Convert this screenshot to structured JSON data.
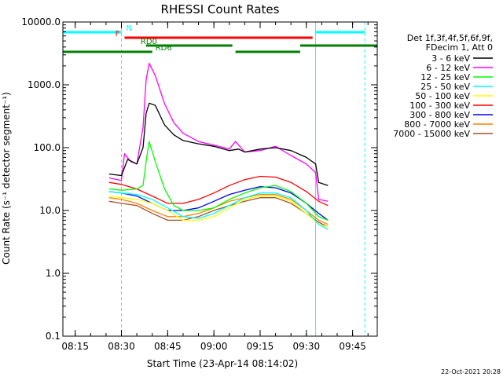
{
  "chart_data": {
    "type": "line",
    "title": "RHESSI Count Rates",
    "xlabel": "Start Time (23-Apr-14 08:14:02)",
    "ylabel": "Count Rate (s⁻¹ detector segment⁻¹)",
    "y_scale": "log",
    "ylim": [
      0.1,
      10000
    ],
    "xlim": [
      "08:11",
      "09:53"
    ],
    "x_ticks": [
      "08:15",
      "08:30",
      "08:45",
      "09:00",
      "09:15",
      "09:30",
      "09:45"
    ],
    "y_ticks": [
      "0.1",
      "1.0",
      "10.0",
      "100.0",
      "1000.0",
      "10000.0"
    ],
    "grid": false,
    "legend_position": "right",
    "legend_header": [
      "Det 1f,3f,4f,5f,6f,9f,",
      "FDecim 1, Att 0"
    ],
    "footer_date": "22-Oct-2021 20:28",
    "series": [
      {
        "name": "3 - 6 keV",
        "color": "#000000",
        "points": [
          [
            "08:26",
            38
          ],
          [
            "08:30",
            36
          ],
          [
            "08:32",
            65
          ],
          [
            "08:35",
            55
          ],
          [
            "08:37",
            100
          ],
          [
            "08:38",
            350
          ],
          [
            "08:39",
            510
          ],
          [
            "08:41",
            470
          ],
          [
            "08:44",
            230
          ],
          [
            "08:47",
            160
          ],
          [
            "08:50",
            130
          ],
          [
            "08:55",
            115
          ],
          [
            "09:00",
            105
          ],
          [
            "09:05",
            90
          ],
          [
            "09:08",
            95
          ],
          [
            "09:10",
            85
          ],
          [
            "09:15",
            95
          ],
          [
            "09:20",
            100
          ],
          [
            "09:25",
            90
          ],
          [
            "09:30",
            70
          ],
          [
            "09:33",
            55
          ],
          [
            "09:34",
            28
          ],
          [
            "09:37",
            25
          ]
        ]
      },
      {
        "name": "6 - 12 keV",
        "color": "#ff00ff",
        "points": [
          [
            "08:26",
            33
          ],
          [
            "08:30",
            30
          ],
          [
            "08:31",
            80
          ],
          [
            "08:33",
            60
          ],
          [
            "08:35",
            55
          ],
          [
            "08:37",
            210
          ],
          [
            "08:38",
            1200
          ],
          [
            "08:39",
            2200
          ],
          [
            "08:41",
            1400
          ],
          [
            "08:44",
            500
          ],
          [
            "08:47",
            250
          ],
          [
            "08:50",
            170
          ],
          [
            "08:55",
            125
          ],
          [
            "09:00",
            110
          ],
          [
            "09:05",
            95
          ],
          [
            "09:07",
            125
          ],
          [
            "09:10",
            85
          ],
          [
            "09:15",
            90
          ],
          [
            "09:20",
            105
          ],
          [
            "09:25",
            75
          ],
          [
            "09:30",
            55
          ],
          [
            "09:33",
            40
          ],
          [
            "09:34",
            15
          ],
          [
            "09:37",
            14
          ]
        ]
      },
      {
        "name": "12 - 25 keV",
        "color": "#00ff00",
        "points": [
          [
            "08:26",
            22
          ],
          [
            "08:30",
            21
          ],
          [
            "08:35",
            22
          ],
          [
            "08:37",
            25
          ],
          [
            "08:38",
            60
          ],
          [
            "08:39",
            125
          ],
          [
            "08:41",
            60
          ],
          [
            "08:44",
            22
          ],
          [
            "08:47",
            12
          ],
          [
            "08:50",
            10
          ],
          [
            "08:55",
            10
          ],
          [
            "09:00",
            11
          ],
          [
            "09:05",
            15
          ],
          [
            "09:10",
            19
          ],
          [
            "09:15",
            23
          ],
          [
            "09:20",
            25
          ],
          [
            "09:25",
            20
          ],
          [
            "09:30",
            13
          ],
          [
            "09:34",
            8
          ],
          [
            "09:37",
            7
          ]
        ]
      },
      {
        "name": "25 - 50 keV",
        "color": "#00ffff",
        "points": [
          [
            "08:26",
            20
          ],
          [
            "08:30",
            19
          ],
          [
            "08:35",
            18
          ],
          [
            "08:40",
            15
          ],
          [
            "08:45",
            11
          ],
          [
            "08:50",
            8
          ],
          [
            "08:55",
            7.5
          ],
          [
            "09:00",
            9
          ],
          [
            "09:05",
            12
          ],
          [
            "09:10",
            16
          ],
          [
            "09:15",
            19
          ],
          [
            "09:20",
            19
          ],
          [
            "09:25",
            16
          ],
          [
            "09:30",
            10
          ],
          [
            "09:34",
            6
          ],
          [
            "09:37",
            5
          ]
        ]
      },
      {
        "name": "50 - 100 keV",
        "color": "#ffff00",
        "points": [
          [
            "08:26",
            17
          ],
          [
            "08:30",
            16
          ],
          [
            "08:35",
            15
          ],
          [
            "08:40",
            13
          ],
          [
            "08:45",
            10
          ],
          [
            "08:50",
            7
          ],
          [
            "08:55",
            7
          ],
          [
            "09:00",
            8
          ],
          [
            "09:05",
            11
          ],
          [
            "09:10",
            15
          ],
          [
            "09:15",
            17
          ],
          [
            "09:20",
            17
          ],
          [
            "09:25",
            14
          ],
          [
            "09:30",
            9
          ],
          [
            "09:34",
            6
          ],
          [
            "09:37",
            5.5
          ]
        ]
      },
      {
        "name": "100 - 300 keV",
        "color": "#ff0000",
        "points": [
          [
            "08:26",
            28
          ],
          [
            "08:30",
            26
          ],
          [
            "08:35",
            22
          ],
          [
            "08:40",
            17
          ],
          [
            "08:45",
            13
          ],
          [
            "08:50",
            13
          ],
          [
            "08:55",
            15
          ],
          [
            "09:00",
            19
          ],
          [
            "09:05",
            25
          ],
          [
            "09:10",
            31
          ],
          [
            "09:15",
            35
          ],
          [
            "09:20",
            34
          ],
          [
            "09:25",
            28
          ],
          [
            "09:30",
            20
          ],
          [
            "09:34",
            14
          ],
          [
            "09:37",
            12
          ]
        ]
      },
      {
        "name": "300 - 800 keV",
        "color": "#0000ff",
        "points": [
          [
            "08:26",
            20
          ],
          [
            "08:30",
            19
          ],
          [
            "08:35",
            17
          ],
          [
            "08:40",
            13
          ],
          [
            "08:45",
            10
          ],
          [
            "08:50",
            10
          ],
          [
            "08:55",
            11
          ],
          [
            "09:00",
            14
          ],
          [
            "09:05",
            18
          ],
          [
            "09:10",
            21
          ],
          [
            "09:15",
            24
          ],
          [
            "09:20",
            23
          ],
          [
            "09:25",
            19
          ],
          [
            "09:30",
            13
          ],
          [
            "09:34",
            9
          ],
          [
            "09:37",
            7
          ]
        ]
      },
      {
        "name": "800 - 7000 keV",
        "color": "#ff8000",
        "points": [
          [
            "08:26",
            16
          ],
          [
            "08:30",
            15
          ],
          [
            "08:35",
            13
          ],
          [
            "08:40",
            10
          ],
          [
            "08:45",
            8
          ],
          [
            "08:50",
            8
          ],
          [
            "08:55",
            9
          ],
          [
            "09:00",
            11
          ],
          [
            "09:05",
            14
          ],
          [
            "09:10",
            16
          ],
          [
            "09:15",
            18
          ],
          [
            "09:20",
            18
          ],
          [
            "09:25",
            15
          ],
          [
            "09:30",
            10
          ],
          [
            "09:34",
            7
          ],
          [
            "09:37",
            6
          ]
        ]
      },
      {
        "name": "7000 - 15000 keV",
        "color": "#a0522d",
        "points": [
          [
            "08:26",
            14
          ],
          [
            "08:30",
            13
          ],
          [
            "08:35",
            12
          ],
          [
            "08:40",
            9
          ],
          [
            "08:45",
            7
          ],
          [
            "08:50",
            7
          ],
          [
            "08:55",
            8
          ],
          [
            "09:00",
            10
          ],
          [
            "09:05",
            12
          ],
          [
            "09:10",
            14
          ],
          [
            "09:15",
            16
          ],
          [
            "09:20",
            16
          ],
          [
            "09:25",
            13
          ],
          [
            "09:30",
            9
          ],
          [
            "09:34",
            6.5
          ],
          [
            "09:37",
            5.5
          ]
        ]
      }
    ],
    "flags": [
      {
        "label": "N",
        "color": "#00ffff",
        "row": 1,
        "segments": [
          [
            "08:11",
            "08:30"
          ],
          [
            "09:33",
            "09:49"
          ]
        ]
      },
      {
        "label": "F",
        "color": "#ff0000",
        "row": 2,
        "segments": [
          [
            "08:31",
            "09:32"
          ]
        ]
      },
      {
        "label": "RD0",
        "color": "#008000",
        "row": 3,
        "segments": [
          [
            "08:38",
            "09:06"
          ],
          [
            "09:28",
            "09:53"
          ]
        ]
      },
      {
        "label": "RD6",
        "color": "#008000",
        "row": 4,
        "segments": [
          [
            "08:11",
            "08:40"
          ],
          [
            "09:07",
            "09:28"
          ]
        ]
      }
    ],
    "vlines": [
      {
        "time": "08:11",
        "style": "solid"
      },
      {
        "time": "08:30",
        "style": "dashed"
      },
      {
        "time": "09:33",
        "style": "solid"
      },
      {
        "time": "09:49",
        "style": "dashed"
      }
    ]
  }
}
